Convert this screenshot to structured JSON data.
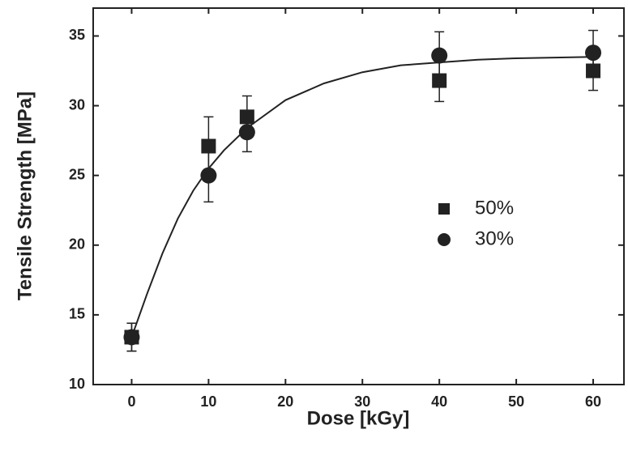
{
  "chart_data": {
    "type": "scatter",
    "xlabel": "Dose  [kGy]",
    "ylabel": "Tensile  Strength  [MPa]",
    "xlim": [
      -5,
      64
    ],
    "ylim": [
      10,
      37
    ],
    "xticks": [
      0,
      10,
      20,
      30,
      40,
      50,
      60
    ],
    "yticks": [
      10,
      15,
      20,
      25,
      30,
      35
    ],
    "x": [
      0,
      10,
      15,
      40,
      60
    ],
    "series": [
      {
        "name": "50%",
        "marker": "square",
        "color": "#222222",
        "values": [
          13.4,
          27.1,
          29.2,
          31.8,
          32.5
        ],
        "errors": [
          1.0,
          2.1,
          1.5,
          1.5,
          1.4
        ]
      },
      {
        "name": "30%",
        "marker": "circle",
        "color": "#222222",
        "values": [
          13.4,
          25.0,
          28.1,
          33.6,
          33.8
        ],
        "errors": [
          1.0,
          1.9,
          1.4,
          1.7,
          1.6
        ]
      }
    ],
    "fit": {
      "color": "#222222",
      "x": [
        0,
        2,
        4,
        6,
        8,
        10,
        12,
        15,
        20,
        25,
        30,
        35,
        40,
        45,
        50,
        55,
        60
      ],
      "values": [
        13.4,
        16.5,
        19.4,
        21.9,
        23.9,
        25.5,
        26.8,
        28.4,
        30.4,
        31.6,
        32.4,
        32.9,
        33.1,
        33.3,
        33.4,
        33.45,
        33.5
      ]
    },
    "legend_position": "center-right"
  }
}
